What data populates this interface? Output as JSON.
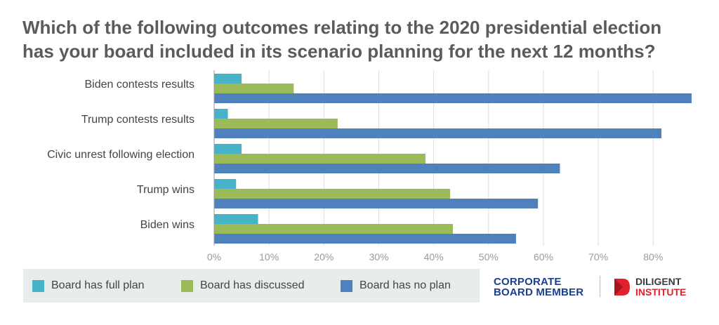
{
  "title_lines": [
    "Which of the following outcomes relating to the 2020 presidential election",
    "has your board included in its scenario planning for the next 12 months?"
  ],
  "colors": {
    "full_plan": "#47b3c9",
    "discussed": "#9bbb59",
    "no_plan": "#4f81bd",
    "grid": "#dddddd",
    "logo_red": "#e2212e",
    "logo_blue": "#1a3f8f"
  },
  "chart_data": {
    "type": "bar",
    "orientation": "horizontal",
    "categories": [
      "Biden contests results",
      "Trump contests results",
      "Civic unrest following election",
      "Trump wins",
      "Biden wins"
    ],
    "series": [
      {
        "name": "Board has full plan",
        "values": [
          5,
          2.5,
          5,
          4,
          8
        ]
      },
      {
        "name": "Board has discussed",
        "values": [
          14.5,
          22.5,
          38.5,
          43,
          43.5
        ]
      },
      {
        "name": "Board has no plan",
        "values": [
          87,
          81.5,
          63,
          59,
          55
        ]
      }
    ],
    "xlim": [
      0,
      87
    ],
    "x_ticks": [
      0,
      10,
      20,
      30,
      40,
      50,
      60,
      70,
      80
    ],
    "x_tick_labels": [
      "0%",
      "10%",
      "20%",
      "30%",
      "40%",
      "50%",
      "60%",
      "70%",
      "80%"
    ],
    "grid": true,
    "legend_position": "bottom-left"
  },
  "legend": [
    {
      "label": "Board has full plan",
      "color": "#47b3c9"
    },
    {
      "label": "Board has discussed",
      "color": "#9bbb59"
    },
    {
      "label": "Board has no plan",
      "color": "#4f81bd"
    }
  ],
  "logos": {
    "cbm_line1": "CORPORATE",
    "cbm_line2": "BOARD MEMBER",
    "diligent_line1": "DILIGENT",
    "diligent_line2": "INSTITUTE"
  }
}
